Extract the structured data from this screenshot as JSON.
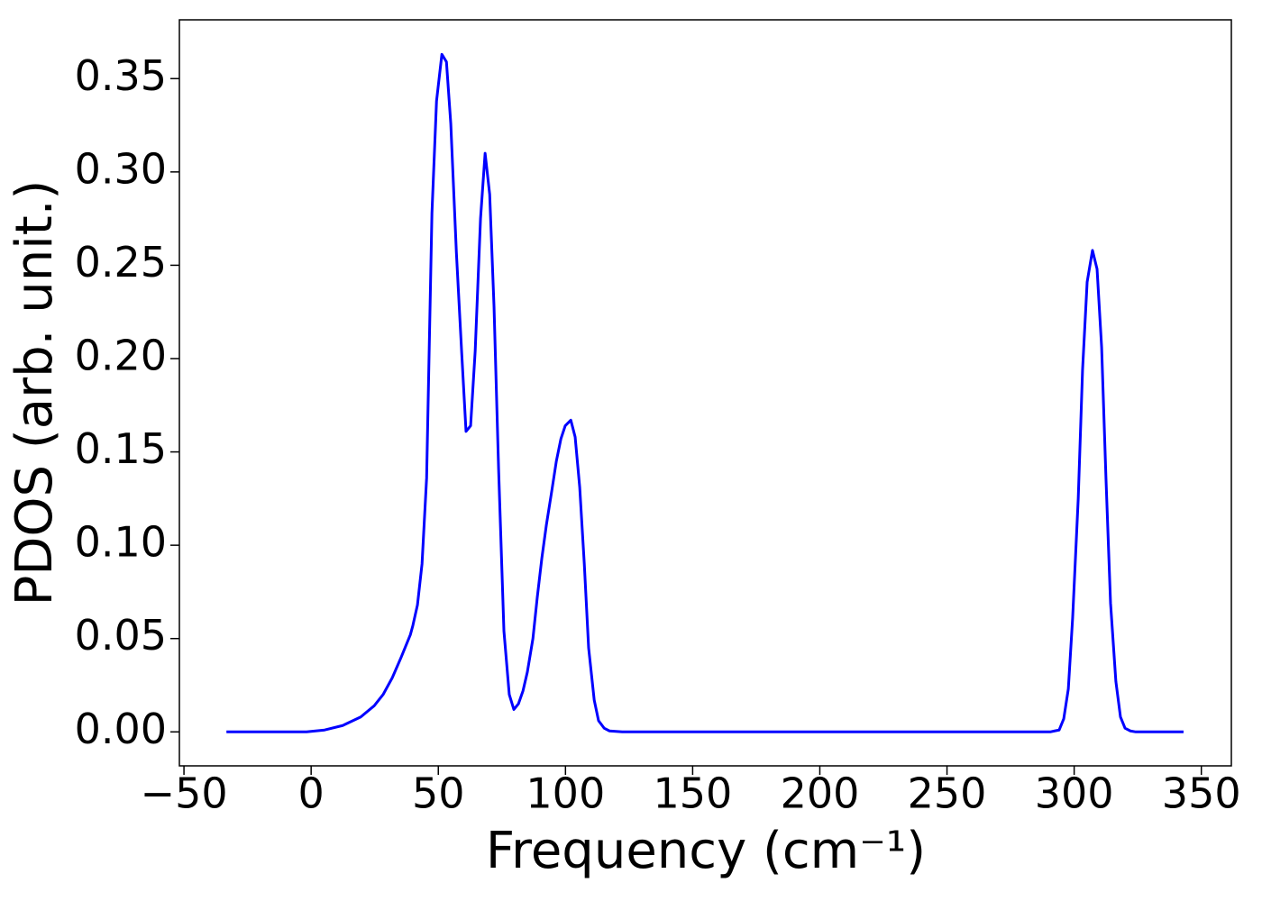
{
  "chart_data": {
    "type": "line",
    "x_label": "Frequency (cm⁻¹)",
    "y_label": "PDOS (arb. unit.)",
    "color": "#0000ff",
    "x": [
      -33.3,
      -1.8,
      5.3,
      12.4,
      19.5,
      24.8,
      28.3,
      31.9,
      35.4,
      39.0,
      40.0,
      41.8,
      43.6,
      45.4,
      47.5,
      49.3,
      51.4,
      53.2,
      54.9,
      57.1,
      59.2,
      60.9,
      62.7,
      64.5,
      66.6,
      68.4,
      70.2,
      71.9,
      73.7,
      75.8,
      77.9,
      79.7,
      81.5,
      83.3,
      85.0,
      87.2,
      88.9,
      90.7,
      92.5,
      94.6,
      96.4,
      98.2,
      99.9,
      102.1,
      103.8,
      105.6,
      107.4,
      109.1,
      111.3,
      113.0,
      115.2,
      117.3,
      122.3,
      290.6,
      292.3,
      294.1,
      295.9,
      297.7,
      299.4,
      301.6,
      303.3,
      305.1,
      307.2,
      309.0,
      310.8,
      312.5,
      314.3,
      316.4,
      318.2,
      320.0,
      322.1,
      324.2,
      343.0
    ],
    "values": [
      0,
      0,
      0.001,
      0.0034,
      0.008,
      0.014,
      0.02,
      0.029,
      0.04,
      0.052,
      0.057,
      0.068,
      0.09,
      0.136,
      0.278,
      0.338,
      0.363,
      0.359,
      0.326,
      0.257,
      0.203,
      0.161,
      0.164,
      0.204,
      0.275,
      0.31,
      0.288,
      0.228,
      0.141,
      0.054,
      0.02,
      0.012,
      0.015,
      0.022,
      0.032,
      0.05,
      0.072,
      0.093,
      0.111,
      0.129,
      0.145,
      0.157,
      0.164,
      0.167,
      0.158,
      0.131,
      0.09,
      0.045,
      0.017,
      0.006,
      0.002,
      0.0005,
      0,
      0,
      0.0005,
      0.001,
      0.007,
      0.023,
      0.061,
      0.125,
      0.194,
      0.241,
      0.258,
      0.248,
      0.206,
      0.136,
      0.069,
      0.027,
      0.008,
      0.002,
      0.0005,
      0,
      0
    ],
    "xlim": [
      -51.8,
      361.8
    ],
    "ylim": [
      -0.0182,
      0.3815
    ],
    "xticks": [
      {
        "value": -50,
        "label": "−50"
      },
      0,
      50,
      100,
      150,
      200,
      250,
      300,
      350
    ],
    "yticks": [
      {
        "value": 0,
        "label": "0.00"
      },
      {
        "value": 0.05,
        "label": "0.05"
      },
      {
        "value": 0.1,
        "label": "0.10"
      },
      {
        "value": 0.15,
        "label": "0.15"
      },
      {
        "value": 0.2,
        "label": "0.20"
      },
      {
        "value": 0.25,
        "label": "0.25"
      },
      {
        "value": 0.3,
        "label": "0.30"
      },
      {
        "value": 0.35,
        "label": "0.35"
      }
    ]
  }
}
